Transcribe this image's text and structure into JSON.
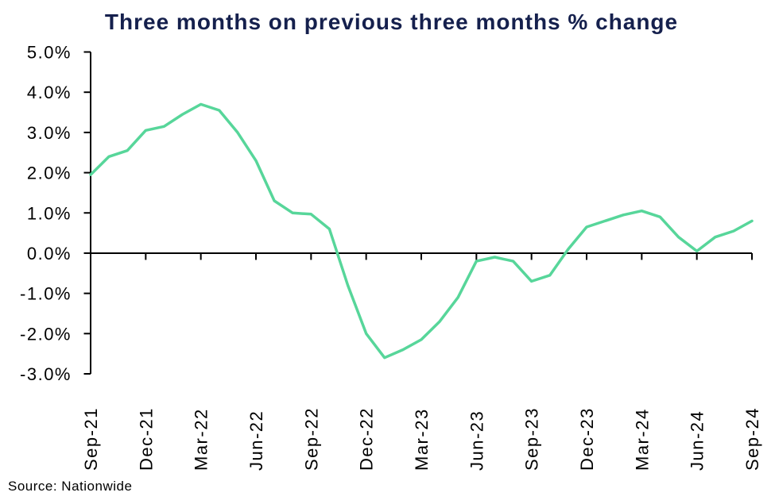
{
  "title": {
    "text": "Three months on previous three months % change",
    "color": "#15204d"
  },
  "source_note": "Source: Nationwide",
  "chart_data": {
    "type": "line",
    "title": "Three months on previous three months % change",
    "x": [
      "Sep-21",
      "Oct-21",
      "Nov-21",
      "Dec-21",
      "Jan-22",
      "Feb-22",
      "Mar-22",
      "Apr-22",
      "May-22",
      "Jun-22",
      "Jul-22",
      "Aug-22",
      "Sep-22",
      "Oct-22",
      "Nov-22",
      "Dec-22",
      "Jan-23",
      "Feb-23",
      "Mar-23",
      "Apr-23",
      "May-23",
      "Jun-23",
      "Jul-23",
      "Aug-23",
      "Sep-23",
      "Oct-23",
      "Nov-23",
      "Dec-23",
      "Jan-24",
      "Feb-24",
      "Mar-24",
      "Apr-24",
      "May-24",
      "Jun-24",
      "Jul-24",
      "Aug-24",
      "Sep-24"
    ],
    "values": [
      1.95,
      2.4,
      2.55,
      3.05,
      3.15,
      3.45,
      3.7,
      3.55,
      3.0,
      2.3,
      1.3,
      1.0,
      0.97,
      0.6,
      -0.8,
      -2.0,
      -2.6,
      -2.4,
      -2.15,
      -1.7,
      -1.1,
      -0.2,
      -0.1,
      -0.2,
      -0.7,
      -0.55,
      0.1,
      0.65,
      0.8,
      0.95,
      1.05,
      0.9,
      0.4,
      0.05,
      0.4,
      0.55,
      0.8
    ],
    "x_tick_labels": [
      "Sep-21",
      "Dec-21",
      "Mar-22",
      "Jun-22",
      "Sep-22",
      "Dec-22",
      "Mar-23",
      "Jun-23",
      "Sep-23",
      "Dec-23",
      "Mar-24",
      "Jun-24",
      "Sep-24"
    ],
    "y_tick_labels": [
      "5.0%",
      "4.0%",
      "3.0%",
      "2.0%",
      "1.0%",
      "0.0%",
      "-1.0%",
      "-2.0%",
      "-3.0%"
    ],
    "y_tick_step": 1.0,
    "ylim": [
      -3.0,
      5.0
    ],
    "grid": false,
    "legend": "none",
    "line_color": "#57d69a",
    "axis_color": "#000000",
    "xlabel": "",
    "ylabel": ""
  }
}
